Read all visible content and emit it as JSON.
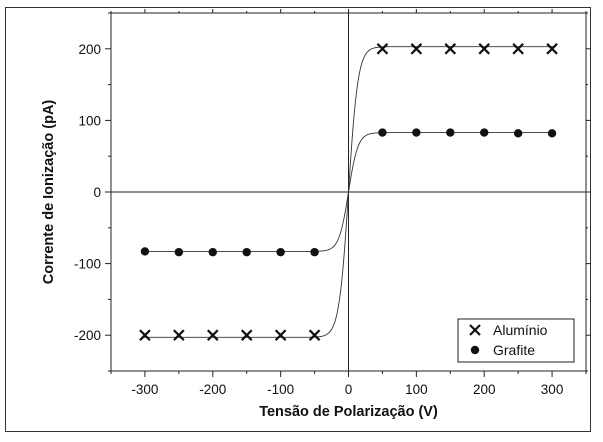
{
  "chart_data": {
    "type": "scatter",
    "xlabel": "Tensão de Polarização (V)",
    "ylabel": "Corrente de Ionização (pA)",
    "xlim": [
      -350,
      350
    ],
    "ylim": [
      -250,
      250
    ],
    "xticks": [
      -300,
      -200,
      -100,
      0,
      100,
      200,
      300
    ],
    "yticks": [
      -200,
      -100,
      0,
      100,
      200
    ],
    "grid": false,
    "zero_lines": true,
    "legend_position": "bottom-right",
    "series": [
      {
        "name": "Alumínio",
        "marker": "x",
        "x": [
          -300,
          -250,
          -200,
          -150,
          -100,
          -50,
          50,
          100,
          150,
          200,
          250,
          300
        ],
        "y": [
          -200,
          -200,
          -200,
          -200,
          -200,
          -200,
          200,
          200,
          200,
          200,
          200,
          200
        ],
        "fit_plateau": 203
      },
      {
        "name": "Grafite",
        "marker": "circle",
        "x": [
          -300,
          -250,
          -200,
          -150,
          -100,
          -50,
          50,
          100,
          150,
          200,
          250,
          300
        ],
        "y": [
          -83,
          -84,
          -84,
          -84,
          -84,
          -84,
          83,
          83,
          83,
          83,
          82,
          82
        ],
        "fit_plateau": 83
      }
    ]
  }
}
